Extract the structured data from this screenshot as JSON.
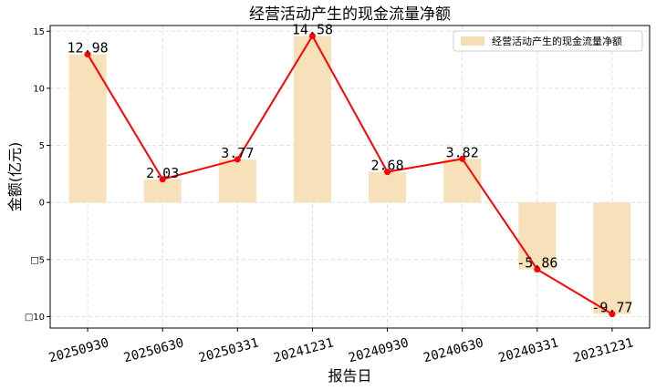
{
  "chart_data": {
    "type": "bar",
    "title": "经营活动产生的现金流量净额",
    "xlabel": "报告日",
    "ylabel": "金额(亿元)",
    "categories": [
      "20250930",
      "20250630",
      "20250331",
      "20241231",
      "20240930",
      "20240630",
      "20240331",
      "20231231"
    ],
    "series": [
      {
        "name": "经营活动产生的现金流量净额",
        "render": "bar",
        "color": "#f5deb3",
        "values": [
          12.98,
          2.03,
          3.77,
          14.58,
          2.68,
          3.82,
          -5.86,
          -9.77
        ]
      },
      {
        "render": "line",
        "color": "#ff0000",
        "values": [
          12.98,
          2.03,
          3.77,
          14.58,
          2.68,
          3.82,
          -5.86,
          -9.77
        ]
      }
    ],
    "data_labels": [
      "12.98",
      "2.03",
      "3.77",
      "14.58",
      "2.68",
      "3.82",
      "-5.86",
      "-9.77"
    ],
    "yticks": [
      15,
      10,
      5,
      0,
      -5,
      -10
    ],
    "ytick_labels": [
      "15",
      "10",
      "5",
      "0",
      "□5",
      "□10"
    ],
    "ylim": [
      -11,
      15.5
    ],
    "grid": true,
    "legend_position": "top-right"
  }
}
